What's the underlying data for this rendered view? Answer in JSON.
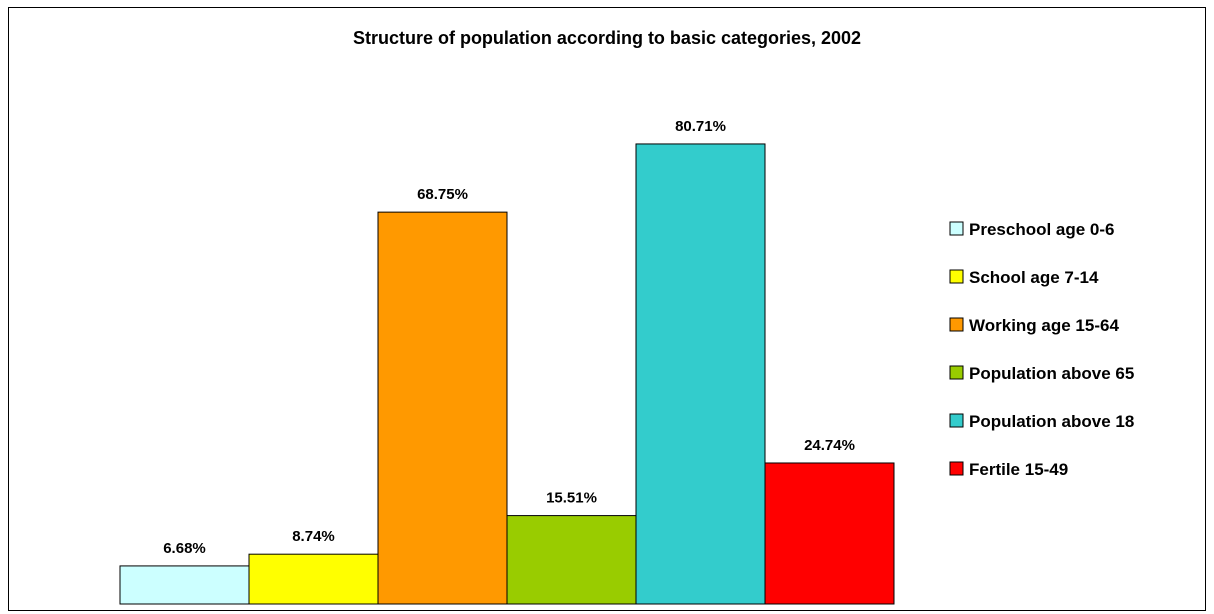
{
  "chart_data": {
    "type": "bar",
    "title": "Structure of population according to basic categories, 2002",
    "categories": [
      "Preschool age 0-6",
      "School age 7-14",
      "Working age 15-64",
      "Population above 65",
      "Population above 18",
      "Fertile 15-49"
    ],
    "values": [
      6.68,
      8.74,
      68.75,
      15.51,
      80.71,
      24.74
    ],
    "value_labels": [
      "6.68%",
      "8.74%",
      "68.75%",
      "15.51%",
      "80.71%",
      "24.74%"
    ],
    "colors": [
      "#ccffff",
      "#ffff00",
      "#ff9900",
      "#99cc00",
      "#33cccc",
      "#ff0000"
    ],
    "ylim": [
      0,
      100
    ],
    "grid": false,
    "legend": "right",
    "xlabel": "",
    "ylabel": ""
  }
}
